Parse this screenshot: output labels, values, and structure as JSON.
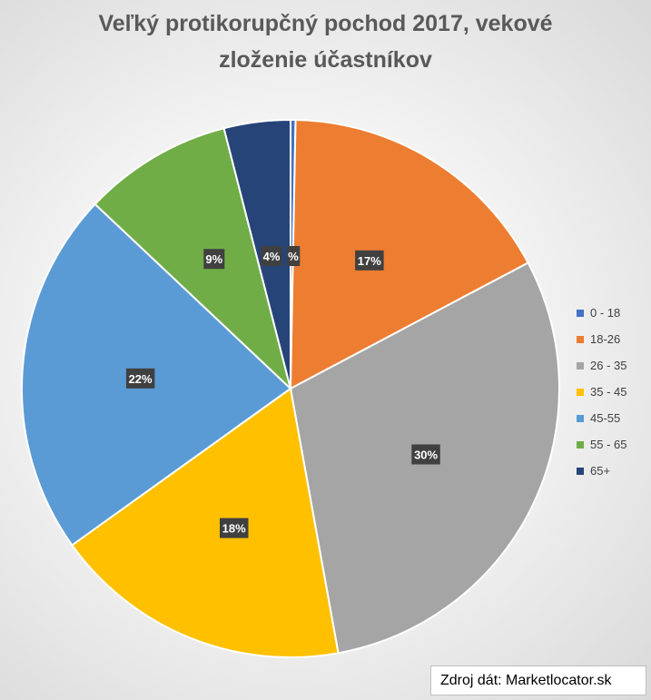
{
  "chart_data": {
    "type": "pie",
    "title_line1": "Veľký protikorupčný pochod 2017, vekové",
    "title_line2": "zloženie účastníkov",
    "categories": [
      "0 - 18",
      "18-26",
      "26 - 35",
      "35 - 45",
      "45-55",
      "55 - 65",
      "65+"
    ],
    "values": [
      0.3,
      17,
      30,
      18,
      22,
      9,
      4
    ],
    "labels": [
      "%",
      "17%",
      "30%",
      "18%",
      "22%",
      "9%",
      "4%"
    ],
    "colors": [
      "#4472c4",
      "#ed7d31",
      "#a5a5a5",
      "#ffc000",
      "#5b9bd5",
      "#70ad47",
      "#264478"
    ],
    "legend_position": "right",
    "source": "Zdroj dát: Marketlocator.sk"
  }
}
